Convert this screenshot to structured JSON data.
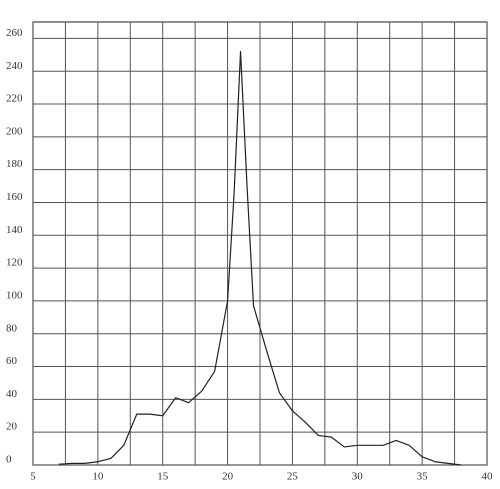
{
  "chart_data": {
    "type": "line",
    "x": [
      7,
      8,
      9,
      10,
      11,
      12,
      13,
      14,
      15,
      16,
      17,
      18,
      19,
      20,
      20.5,
      21,
      21.5,
      22,
      23,
      24,
      25,
      26,
      27,
      28,
      29,
      30,
      31,
      32,
      33,
      34,
      35,
      36,
      37,
      38
    ],
    "series": [
      {
        "color": "#222222",
        "values": [
          0.5,
          1,
          1,
          2,
          4,
          12,
          31,
          31,
          30,
          41,
          38,
          45,
          57,
          100,
          165,
          252,
          170,
          97,
          70,
          44,
          33,
          26,
          18,
          17,
          11,
          12,
          12,
          12,
          15,
          12,
          5,
          2,
          1,
          0
        ]
      }
    ],
    "xlim": [
      5,
      40
    ],
    "xticks": [
      5,
      10,
      15,
      20,
      25,
      30,
      35,
      40
    ],
    "ylim": [
      0,
      270
    ],
    "yticks": [
      0,
      20,
      40,
      60,
      80,
      100,
      120,
      140,
      160,
      180,
      200,
      220,
      240,
      260
    ],
    "grid": true
  }
}
